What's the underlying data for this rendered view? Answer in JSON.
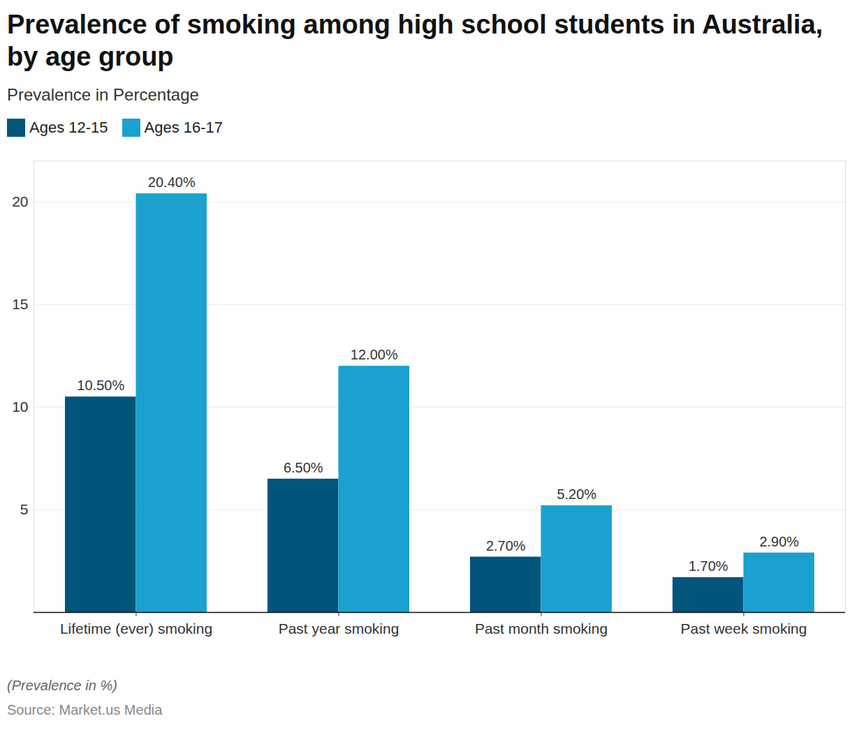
{
  "chart_data": {
    "type": "bar",
    "title": "Prevalence of smoking among high school students in Australia, by age group",
    "subtitle": "Prevalence in Percentage",
    "note": "(Prevalence in %)",
    "source": "Source: Market.us Media",
    "categories": [
      "Lifetime (ever) smoking",
      "Past year smoking",
      "Past month smoking",
      "Past week smoking"
    ],
    "series": [
      {
        "name": "Ages 12-15",
        "color": "#02557b",
        "values": [
          10.5,
          6.5,
          2.7,
          1.7
        ],
        "value_labels": [
          "10.50%",
          "6.50%",
          "2.70%",
          "1.70%"
        ]
      },
      {
        "name": "Ages 16-17",
        "color": "#1ba1cf",
        "values": [
          20.4,
          12.0,
          5.2,
          2.9
        ],
        "value_labels": [
          "20.40%",
          "12.00%",
          "5.20%",
          "2.90%"
        ]
      }
    ],
    "ylim": [
      0,
      22
    ],
    "yticks": [
      5,
      10,
      15,
      20
    ],
    "grid": true,
    "data_labels": true,
    "legend": "top-left"
  }
}
